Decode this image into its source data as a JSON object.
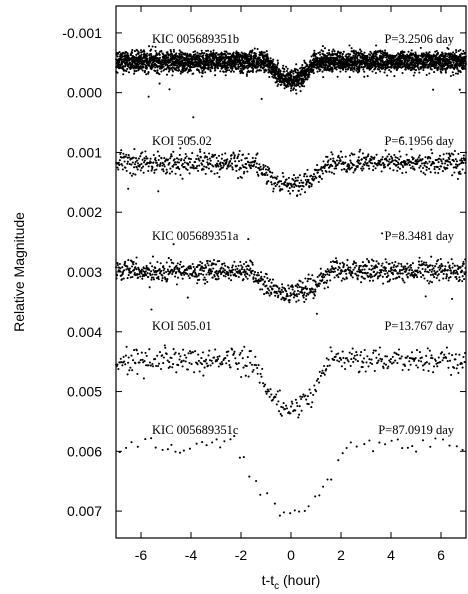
{
  "chart_data": {
    "type": "scatter",
    "xlabel_main": "t-t",
    "xlabel_sub": "c",
    "xlabel_suffix": " (hour)",
    "ylabel": "Relative Magnitude",
    "xlim": [
      -7,
      7
    ],
    "ylim": [
      -0.00145,
      0.00745
    ],
    "y_inverted": true,
    "grid": false,
    "x_ticks": [
      -6,
      -4,
      -2,
      0,
      2,
      4,
      6
    ],
    "x_tick_labels": [
      "-6",
      "-4",
      "-2",
      "0",
      "2",
      "4",
      "6"
    ],
    "y_ticks": [
      -0.001,
      0.0,
      0.001,
      0.002,
      0.003,
      0.004,
      0.005,
      0.006,
      0.007
    ],
    "y_tick_labels": [
      "-0.001",
      "0.000",
      "0.001",
      "0.002",
      "0.003",
      "0.004",
      "0.005",
      "0.006",
      "0.007"
    ],
    "series": [
      {
        "name": "KIC 005689351b",
        "period_label": "P=3.2506 day",
        "baseline": -0.00052,
        "depth": 0.00032,
        "half_width": 0.95,
        "scatter": 0.00017,
        "step": 0.0075,
        "outliers": 0.004,
        "rows": 2
      },
      {
        "name": "KOI 505.02",
        "period_label": "P=6.1956 day",
        "baseline": 0.00118,
        "depth": 0.00038,
        "half_width": 1.5,
        "scatter": 0.00018,
        "step": 0.016,
        "outliers": 0.005,
        "rows": 1
      },
      {
        "name": "KIC 005689351a",
        "period_label": "P=8.3481 day",
        "baseline": 0.00298,
        "depth": 0.00038,
        "half_width": 1.6,
        "scatter": 0.00018,
        "step": 0.014,
        "outliers": 0.005,
        "rows": 1
      },
      {
        "name": "KOI 505.01",
        "period_label": "P=13.767 day",
        "baseline": 0.00448,
        "depth": 0.00085,
        "half_width": 1.45,
        "scatter": 0.0002,
        "step": 0.032,
        "outliers": 0.01,
        "rows": 1
      },
      {
        "name": "KIC 005689351c",
        "period_label": "P=87.0919 day",
        "baseline": 0.0059,
        "depth": 0.0011,
        "half_width": 2.2,
        "scatter": 0.00012,
        "step": 0.22,
        "outliers": 0.0,
        "rows": 1
      }
    ]
  }
}
